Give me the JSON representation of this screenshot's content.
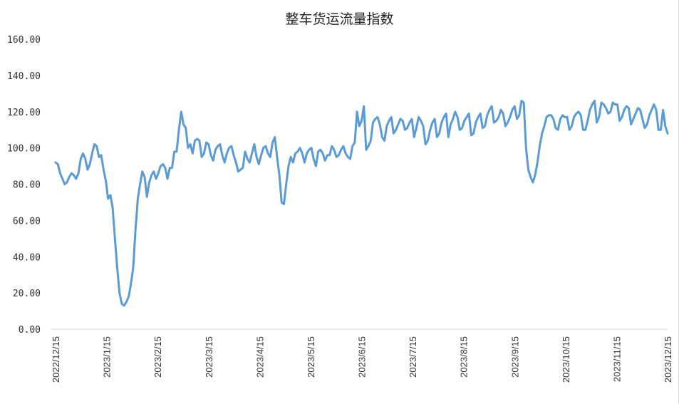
{
  "chart_data": {
    "type": "line",
    "title": "整车货运流量指数",
    "xlabel": "",
    "ylabel": "",
    "ylim": [
      0,
      160
    ],
    "yticks": [
      "0.00",
      "20.00",
      "40.00",
      "60.00",
      "80.00",
      "100.00",
      "120.00",
      "140.00",
      "160.00"
    ],
    "xticks": [
      "2022/12/15",
      "2023/1/15",
      "2023/2/15",
      "2023/3/15",
      "2023/4/15",
      "2023/5/15",
      "2023/6/15",
      "2023/7/15",
      "2023/8/15",
      "2023/9/15",
      "2023/10/15",
      "2023/11/15",
      "2023/12/15"
    ],
    "grid": false,
    "legend": null,
    "line_color": "#5b9bd5",
    "series": [
      {
        "name": "整车货运流量指数",
        "x_start": "2022/12/15",
        "x_end": "2023/12/15",
        "values": [
          92,
          91,
          86,
          83,
          80,
          81,
          84,
          86,
          85,
          83,
          86,
          94,
          97,
          94,
          88,
          91,
          97,
          102,
          101,
          95,
          96,
          88,
          82,
          72,
          74,
          67,
          50,
          34,
          20,
          14,
          13,
          15,
          18,
          25,
          34,
          55,
          72,
          80,
          87,
          84,
          73,
          81,
          85,
          87,
          83,
          86,
          90,
          91,
          89,
          83,
          89,
          89,
          98,
          98,
          110,
          120,
          113,
          111,
          100,
          102,
          97,
          104,
          105,
          104,
          95,
          97,
          103,
          102,
          96,
          93,
          99,
          101,
          102,
          96,
          92,
          97,
          100,
          101,
          96,
          92,
          87,
          88,
          89,
          98,
          94,
          92,
          97,
          102,
          95,
          91,
          96,
          100,
          101,
          97,
          95,
          103,
          106,
          95,
          85,
          70,
          69,
          80,
          90,
          95,
          92,
          97,
          98,
          100,
          97,
          92,
          97,
          99,
          100,
          94,
          90,
          98,
          99,
          97,
          93,
          96,
          96,
          101,
          99,
          95,
          96,
          99,
          101,
          97,
          95,
          94,
          101,
          103,
          120,
          112,
          115,
          123,
          99,
          101,
          104,
          114,
          116,
          117,
          113,
          106,
          104,
          112,
          115,
          117,
          108,
          110,
          113,
          116,
          115,
          110,
          111,
          114,
          116,
          106,
          111,
          117,
          115,
          112,
          102,
          104,
          110,
          114,
          116,
          106,
          108,
          114,
          117,
          119,
          106,
          113,
          116,
          120,
          117,
          110,
          111,
          115,
          117,
          119,
          107,
          108,
          114,
          117,
          119,
          111,
          112,
          118,
          121,
          123,
          114,
          115,
          117,
          121,
          119,
          112,
          114,
          117,
          121,
          123,
          116,
          118,
          126,
          125,
          100,
          88,
          84,
          81,
          85,
          92,
          101,
          108,
          112,
          117,
          118,
          118,
          116,
          111,
          110,
          116,
          118,
          117,
          117,
          110,
          112,
          117,
          119,
          120,
          118,
          110,
          110,
          115,
          121,
          124,
          126,
          114,
          117,
          125,
          124,
          122,
          119,
          120,
          125,
          124,
          124,
          115,
          117,
          121,
          123,
          122,
          113,
          116,
          119,
          122,
          121,
          116,
          111,
          113,
          118,
          121,
          124,
          121,
          110,
          110,
          121,
          112,
          108
        ]
      }
    ]
  }
}
